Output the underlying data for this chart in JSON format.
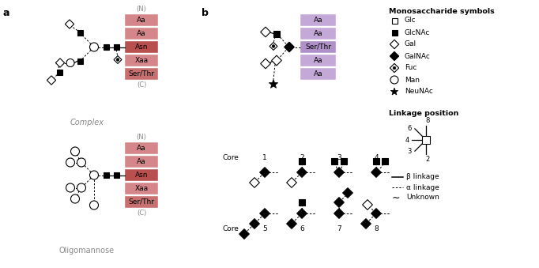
{
  "fig_width": 6.82,
  "fig_height": 3.39,
  "bg_color": "#ffffff",
  "panel_a_label": "a",
  "panel_b_label": "b",
  "complex_label": "Complex",
  "oligomannose_label": "Oligomannose",
  "pink_aa": "#d4868a",
  "pink_asn": "#b85050",
  "pink_ser": "#c87070",
  "purple_aa": "#c4a8d8",
  "purple_ser": "#b090c8",
  "monosaccharide_title": "Monosaccharide symbols",
  "monosaccharide_items": [
    "Glc",
    "GlcNAc",
    "Gal",
    "GalNAc",
    "Fuc",
    "Man",
    "NeuNAc"
  ],
  "linkage_title": "Linkage position",
  "linkage_items": [
    "β linkage",
    "α linkage",
    "Unknown"
  ]
}
